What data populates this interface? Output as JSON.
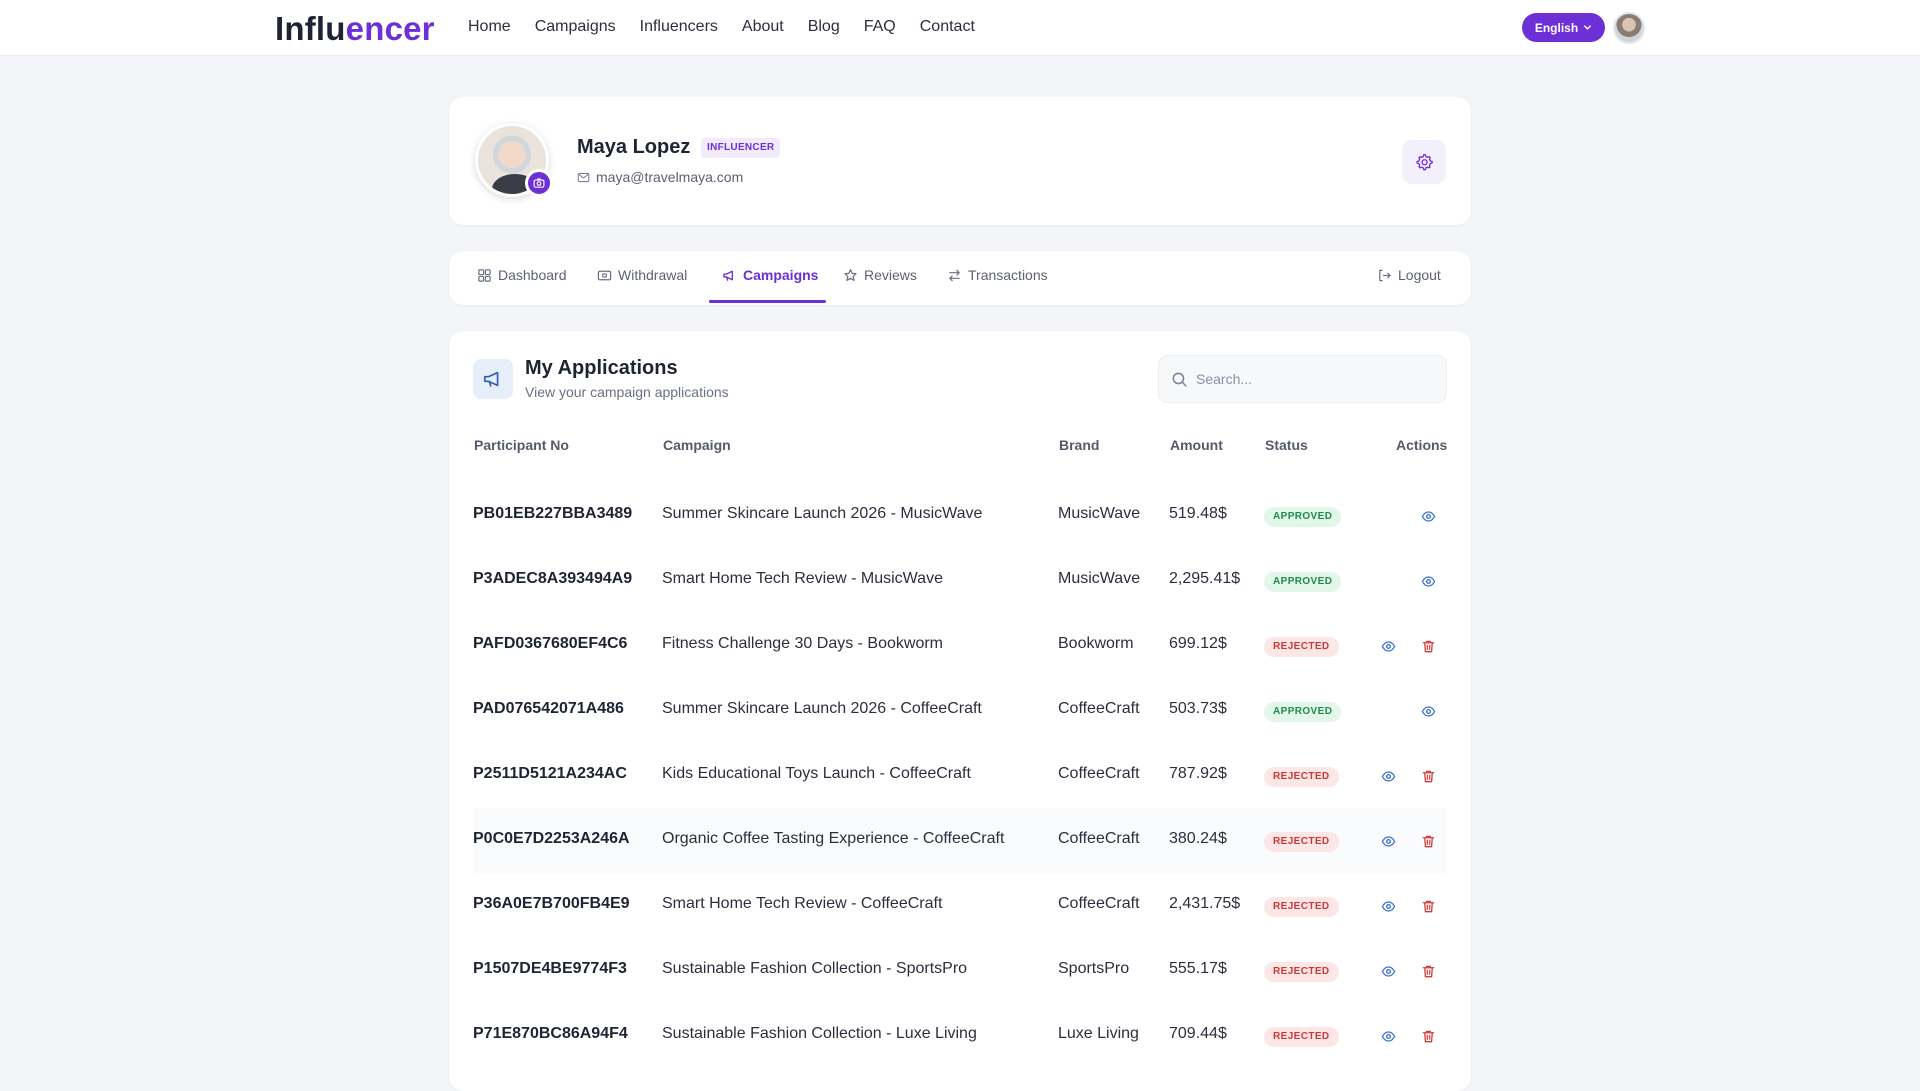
{
  "brand": {
    "part1": "Influ",
    "part2": "encer"
  },
  "nav": [
    "Home",
    "Campaigns",
    "Influencers",
    "About",
    "Blog",
    "FAQ",
    "Contact"
  ],
  "language": "English",
  "profile": {
    "name": "Maya Lopez",
    "role": "INFLUENCER",
    "email": "maya@travelmaya.com"
  },
  "tabs": {
    "dashboard": "Dashboard",
    "withdrawal": "Withdrawal",
    "campaigns": "Campaigns",
    "reviews": "Reviews",
    "transactions": "Transactions",
    "logout": "Logout"
  },
  "applications": {
    "title": "My Applications",
    "subtitle": "View your campaign applications",
    "search_placeholder": "Search...",
    "columns": [
      "Participant No",
      "Campaign",
      "Brand",
      "Amount",
      "Status",
      "Actions"
    ],
    "rows": [
      {
        "pno": "PB01EB227BBA3489",
        "campaign": "Summer Skincare Launch 2026 - MusicWave",
        "brand": "MusicWave",
        "amount": "519.48$",
        "status": "APPROVED"
      },
      {
        "pno": "P3ADEC8A393494A9",
        "campaign": "Smart Home Tech Review - MusicWave",
        "brand": "MusicWave",
        "amount": "2,295.41$",
        "status": "APPROVED"
      },
      {
        "pno": "PAFD0367680EF4C6",
        "campaign": "Fitness Challenge 30 Days - Bookworm",
        "brand": "Bookworm",
        "amount": "699.12$",
        "status": "REJECTED"
      },
      {
        "pno": "PAD076542071A486",
        "campaign": "Summer Skincare Launch 2026 - CoffeeCraft",
        "brand": "CoffeeCraft",
        "amount": "503.73$",
        "status": "APPROVED"
      },
      {
        "pno": "P2511D5121A234AC",
        "campaign": "Kids Educational Toys Launch - CoffeeCraft",
        "brand": "CoffeeCraft",
        "amount": "787.92$",
        "status": "REJECTED"
      },
      {
        "pno": "P0C0E7D2253A246A",
        "campaign": "Organic Coffee Tasting Experience - CoffeeCraft",
        "brand": "CoffeeCraft",
        "amount": "380.24$",
        "status": "REJECTED"
      },
      {
        "pno": "P36A0E7B700FB4E9",
        "campaign": "Smart Home Tech Review - CoffeeCraft",
        "brand": "CoffeeCraft",
        "amount": "2,431.75$",
        "status": "REJECTED"
      },
      {
        "pno": "P1507DE4BE9774F3",
        "campaign": "Sustainable Fashion Collection - SportsPro",
        "brand": "SportsPro",
        "amount": "555.17$",
        "status": "REJECTED"
      },
      {
        "pno": "P71E870BC86A94F4",
        "campaign": "Sustainable Fashion Collection - Luxe Living",
        "brand": "Luxe Living",
        "amount": "709.44$",
        "status": "REJECTED"
      }
    ]
  },
  "colors": {
    "accent": "#6d2fd6",
    "approved_bg": "#e3f6ea",
    "approved_text": "#1f8a4c",
    "rejected_bg": "#fde6e6",
    "rejected_text": "#c83a3a",
    "view_icon": "#3b6fd1",
    "delete_icon": "#d23b3b"
  },
  "icons": {
    "view": "eye-icon",
    "delete": "trash-icon",
    "settings": "gear-icon",
    "camera": "camera-icon",
    "search": "search-icon",
    "megaphone": "megaphone-icon"
  }
}
